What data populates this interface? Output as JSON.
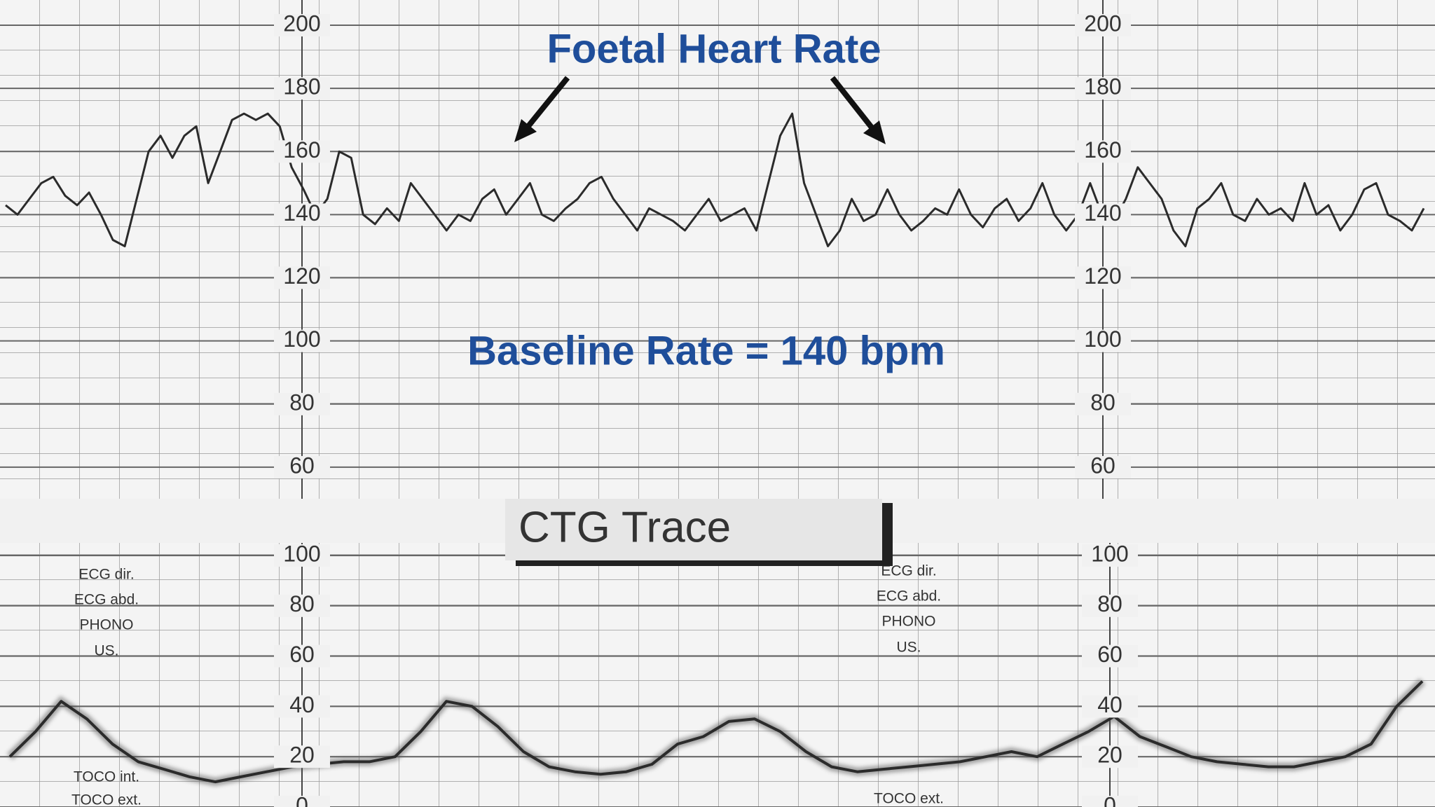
{
  "chart_data": [
    {
      "type": "line",
      "title": "Foetal Heart Rate",
      "annotation": "Baseline Rate = 140 bpm",
      "color": "#2b2b2b",
      "ylim": [
        50,
        208
      ],
      "yticks": [
        60,
        80,
        100,
        120,
        140,
        160,
        180,
        200
      ],
      "grid": true,
      "categories": [
        null,
        null,
        null,
        null,
        null,
        null,
        null,
        null,
        null,
        null,
        null,
        null,
        null,
        null,
        null,
        null,
        null,
        null,
        null,
        null,
        null,
        null,
        null,
        null,
        null,
        null,
        null,
        null,
        null,
        null,
        null,
        null,
        null,
        null,
        null,
        null,
        null,
        null,
        null,
        null,
        null,
        null,
        null,
        null,
        null,
        null,
        null,
        null,
        null,
        null,
        null,
        null,
        null,
        null,
        null,
        null,
        null,
        null,
        null,
        null,
        null,
        null,
        null,
        null,
        null,
        null,
        null,
        null,
        null,
        null,
        null,
        null,
        null,
        null,
        null,
        null,
        null,
        null,
        null,
        null,
        null,
        null,
        null,
        null,
        null,
        null,
        null,
        null,
        null,
        null,
        null,
        null,
        null,
        null,
        null,
        null,
        null,
        null,
        null,
        null,
        null,
        null,
        null,
        null,
        null,
        null,
        null,
        null,
        null,
        null,
        null,
        null,
        null,
        null,
        null,
        null,
        null,
        null,
        null,
        null
      ],
      "values": [
        143,
        140,
        145,
        150,
        152,
        146,
        143,
        147,
        140,
        132,
        130,
        145,
        160,
        165,
        158,
        165,
        168,
        150,
        160,
        170,
        172,
        170,
        172,
        168,
        155,
        148,
        140,
        145,
        160,
        158,
        140,
        137,
        142,
        138,
        150,
        145,
        140,
        135,
        140,
        138,
        145,
        148,
        140,
        145,
        150,
        140,
        138,
        142,
        145,
        150,
        152,
        145,
        140,
        135,
        142,
        140,
        138,
        135,
        140,
        145,
        138,
        140,
        142,
        135,
        150,
        165,
        172,
        150,
        140,
        130,
        135,
        145,
        138,
        140,
        148,
        140,
        135,
        138,
        142,
        140,
        148,
        140,
        136,
        142,
        145,
        138,
        142,
        150,
        140,
        135,
        140,
        150,
        140,
        138,
        145,
        155,
        150,
        145,
        135,
        130,
        142,
        145,
        150,
        140,
        138,
        145,
        140,
        142,
        138,
        150,
        140,
        143,
        135,
        140,
        148,
        150,
        140,
        138,
        135,
        142
      ]
    },
    {
      "type": "line",
      "title": "CTG Trace",
      "color": "#2b2b2b",
      "labels_left": [
        "ECG dir.",
        "ECG abd.",
        "PHONO",
        "US.",
        "TOCO int.",
        "TOCO ext."
      ],
      "labels_right": [
        "ECG dir.",
        "ECG abd.",
        "PHONO",
        "US.",
        "TOCO ext."
      ],
      "ylim": [
        0,
        105
      ],
      "yticks": [
        0,
        20,
        40,
        60,
        80,
        100
      ],
      "grid": true,
      "categories": [
        null,
        null,
        null,
        null,
        null,
        null,
        null,
        null,
        null,
        null,
        null,
        null,
        null,
        null,
        null,
        null,
        null,
        null,
        null,
        null,
        null,
        null,
        null,
        null,
        null,
        null,
        null,
        null,
        null,
        null,
        null,
        null,
        null,
        null,
        null,
        null,
        null,
        null,
        null,
        null,
        null,
        null,
        null,
        null,
        null,
        null,
        null,
        null,
        null,
        null,
        null,
        null,
        null,
        null,
        null,
        null
      ],
      "values": [
        20,
        30,
        42,
        35,
        25,
        18,
        15,
        12,
        10,
        12,
        14,
        16,
        17,
        18,
        18,
        20,
        30,
        42,
        40,
        32,
        22,
        16,
        14,
        13,
        14,
        17,
        25,
        28,
        34,
        35,
        30,
        22,
        16,
        14,
        15,
        16,
        17,
        18,
        20,
        22,
        20,
        25,
        30,
        36,
        28,
        24,
        20,
        18,
        17,
        16,
        16,
        18,
        20,
        25,
        40,
        50
      ]
    }
  ]
}
